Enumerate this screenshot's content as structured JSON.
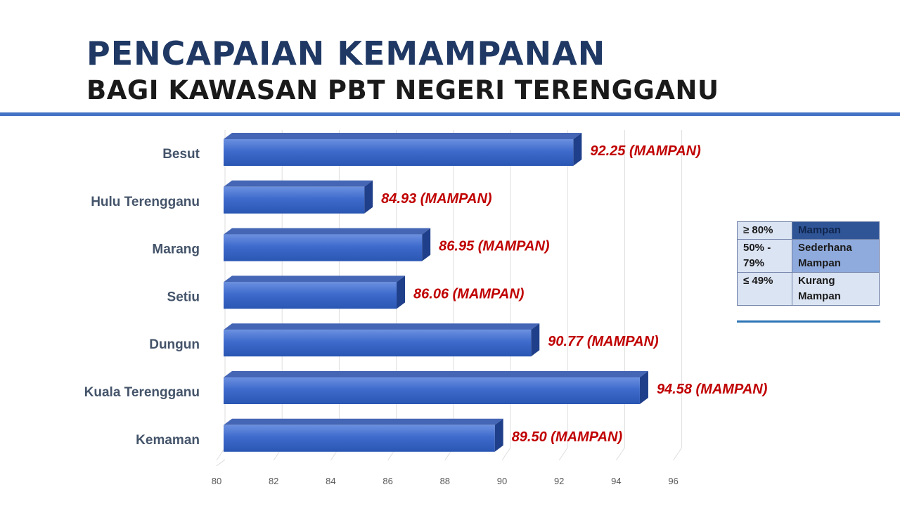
{
  "header": {
    "title": "PENCAPAIAN KEMAMPANAN",
    "subtitle": "BAGI KAWASAN PBT NEGERI TERENGGANU"
  },
  "chart_data": {
    "type": "bar",
    "orientation": "horizontal",
    "categories": [
      "Besut",
      "Hulu Terengganu",
      "Marang",
      "Setiu",
      "Dungun",
      "Kuala Terengganu",
      "Kemaman"
    ],
    "values": [
      92.25,
      84.93,
      86.95,
      86.06,
      90.77,
      94.58,
      89.5
    ],
    "data_labels": [
      "92.25 (MAMPAN)",
      "84.93 (MAMPAN)",
      "86.95 (MAMPAN)",
      "86.06 (MAMPAN)",
      "90.77 (MAMPAN)",
      "94.58 (MAMPAN)",
      "89.50 (MAMPAN)"
    ],
    "xlim": [
      80,
      96
    ],
    "x_ticks": [
      80,
      82,
      84,
      86,
      88,
      90,
      92,
      94,
      96
    ],
    "grid": true,
    "bar_color": "#3a66c8",
    "label_color": "#c00000"
  },
  "legend": {
    "rows": [
      {
        "range": "≥ 80%",
        "status": "Mampan",
        "color": "#2f5597"
      },
      {
        "range": "50% - 79%",
        "status": "Sederhana Mampan",
        "color": "#8faadc"
      },
      {
        "range": "≤ 49%",
        "status": "Kurang Mampan",
        "color": "#dbe4f3"
      }
    ]
  }
}
